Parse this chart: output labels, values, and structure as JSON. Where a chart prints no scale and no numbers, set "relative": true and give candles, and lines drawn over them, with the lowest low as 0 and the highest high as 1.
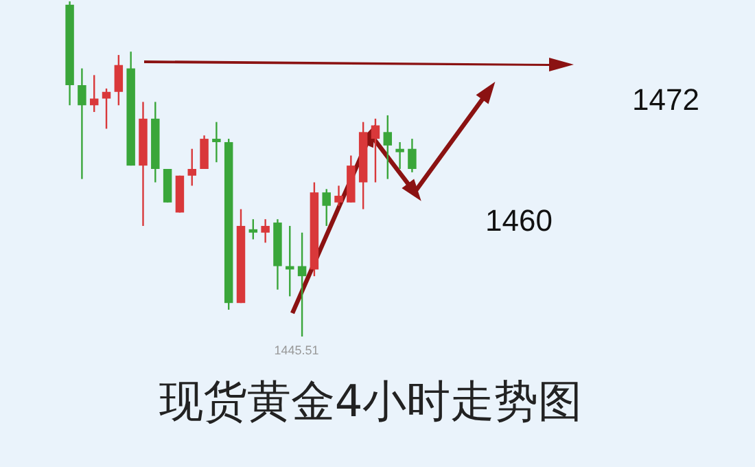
{
  "chart_data": {
    "type": "candlestick",
    "title": "现货黄金4小时走势图",
    "relative": true,
    "categories": [
      null,
      null,
      null,
      null,
      null,
      null,
      null,
      null,
      null,
      null,
      null,
      null,
      null,
      null,
      null,
      null,
      null,
      null,
      null,
      null,
      null,
      null,
      null,
      null,
      null,
      null,
      null,
      null,
      null
    ],
    "ohlc": [
      [
        0.99,
        1,
        0.69,
        0.75
      ],
      [
        0.75,
        0.8,
        0.47,
        0.69
      ],
      [
        0.69,
        0.78,
        0.67,
        0.71
      ],
      [
        0.71,
        0.74,
        0.62,
        0.73
      ],
      [
        0.73,
        0.84,
        0.69,
        0.81
      ],
      [
        0.8,
        0.85,
        0.51,
        0.51
      ],
      [
        0.51,
        0.7,
        0.33,
        0.65
      ],
      [
        0.65,
        0.7,
        0.46,
        0.5
      ],
      [
        0.5,
        0.5,
        0.4,
        0.4
      ],
      [
        0.37,
        0.48,
        0.37,
        0.48
      ],
      [
        0.48,
        0.56,
        0.45,
        0.5
      ],
      [
        0.5,
        0.6,
        0.5,
        0.59
      ],
      [
        0.59,
        0.64,
        0.52,
        0.58
      ],
      [
        0.58,
        0.59,
        0.08,
        0.1
      ],
      [
        0.1,
        0.38,
        0.1,
        0.33
      ],
      [
        0.32,
        0.35,
        0.29,
        0.31
      ],
      [
        0.31,
        0.35,
        0.28,
        0.33
      ],
      [
        0.34,
        0.35,
        0.14,
        0.21
      ],
      [
        0.21,
        0.33,
        0.12,
        0.2
      ],
      [
        0.21,
        0.31,
        0,
        0.18
      ],
      [
        0.2,
        0.46,
        0.18,
        0.43
      ],
      [
        0.43,
        0.44,
        0.33,
        0.39
      ],
      [
        0.4,
        0.45,
        0.39,
        0.42
      ],
      [
        0.4,
        0.54,
        0.4,
        0.51
      ],
      [
        0.46,
        0.64,
        0.38,
        0.61
      ],
      [
        0.59,
        0.65,
        0.46,
        0.63
      ],
      [
        0.61,
        0.66,
        0.47,
        0.57
      ],
      [
        0.56,
        0.58,
        0.5,
        0.55
      ],
      [
        0.56,
        0.59,
        0.49,
        0.5
      ]
    ],
    "colors": [
      "#3aa63a",
      "#3aa63a",
      "#d9383a",
      "#d9383a",
      "#d9383a",
      "#3aa63a",
      "#d9383a",
      "#3aa63a",
      "#3aa63a",
      "#d9383a",
      "#d9383a",
      "#d9383a",
      "#3aa63a",
      "#3aa63a",
      "#d9383a",
      "#3aa63a",
      "#d9383a",
      "#3aa63a",
      "#3aa63a",
      "#3aa63a",
      "#d9383a",
      "#3aa63a",
      "#d9383a",
      "#d9383a",
      "#d9383a",
      "#d9383a",
      "#3aa63a",
      "#3aa63a",
      "#3aa63a"
    ],
    "annotations": [
      {
        "text": "1445.51",
        "y": 0
      },
      "1472",
      "1460"
    ]
  }
}
